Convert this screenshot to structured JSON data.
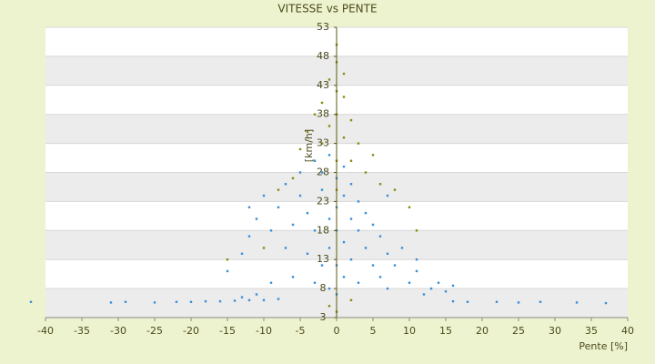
{
  "chart_data": {
    "type": "scatter",
    "title": "VITESSE vs PENTE",
    "x_label": "Pente [%]",
    "y_label": "[km/h]",
    "xlim": [
      -40,
      40
    ],
    "xticks": [
      -40,
      -35,
      -30,
      -25,
      -20,
      -15,
      -10,
      -5,
      0,
      5,
      10,
      15,
      20,
      25,
      30,
      35,
      40
    ],
    "ylim": [
      3,
      53
    ],
    "yticks": [
      3,
      8,
      13,
      18,
      23,
      28,
      33,
      38,
      43,
      48,
      53
    ],
    "grid": true,
    "series": [
      {
        "color": "#3a8fd8",
        "x": [
          -42,
          -31,
          -29,
          -25,
          -22,
          -20,
          -18,
          -16,
          -14,
          -12,
          -10,
          -8,
          16,
          18,
          22,
          25,
          28,
          33,
          37,
          -15,
          -13,
          -12,
          -11,
          -10,
          -9,
          -8,
          -7,
          -7,
          -6,
          -6,
          -5,
          -5,
          -4,
          -4,
          -3,
          -3,
          -3,
          -2,
          -2,
          -2,
          -1,
          -1,
          -1,
          -1,
          0,
          0,
          0,
          0,
          0,
          1,
          1,
          1,
          1,
          2,
          2,
          2,
          3,
          3,
          3,
          4,
          4,
          5,
          5,
          6,
          6,
          7,
          7,
          8,
          9,
          10,
          11,
          12,
          13,
          14,
          15,
          16,
          -9,
          -11,
          -13,
          7,
          11,
          -12
        ],
        "y": [
          5.7,
          5.6,
          5.7,
          5.6,
          5.7,
          5.7,
          5.8,
          5.8,
          5.9,
          6,
          6,
          6.2,
          5.8,
          5.7,
          5.7,
          5.6,
          5.7,
          5.6,
          5.5,
          11,
          14,
          17,
          20,
          24,
          18,
          22,
          15,
          26,
          19,
          10,
          24,
          28,
          14,
          21,
          30,
          18,
          9,
          25,
          12,
          28,
          20,
          31,
          15,
          8,
          22,
          27,
          18,
          12,
          7,
          24,
          16,
          29,
          10,
          20,
          13,
          26,
          18,
          9,
          23,
          15,
          21,
          12,
          19,
          10,
          17,
          14,
          8,
          12,
          15,
          9,
          11,
          7,
          8,
          9,
          7.5,
          8.5,
          9,
          7,
          6.5,
          24,
          13,
          22
        ]
      },
      {
        "color": "#8a8a10",
        "x": [
          -15,
          -10,
          -8,
          -6,
          -5,
          -4,
          -3,
          -2,
          -2,
          -1,
          -1,
          0,
          0,
          0,
          0,
          0,
          0,
          1,
          1,
          1,
          2,
          2,
          3,
          4,
          5,
          6,
          8,
          10,
          11,
          -1,
          0,
          2
        ],
        "y": [
          13,
          15,
          25,
          27,
          32,
          35,
          38,
          33,
          40,
          36,
          44,
          50,
          47,
          42,
          38,
          30,
          25,
          41,
          45,
          34,
          37,
          30,
          33,
          28,
          31,
          26,
          25,
          22,
          18,
          5,
          4,
          6
        ]
      }
    ]
  }
}
